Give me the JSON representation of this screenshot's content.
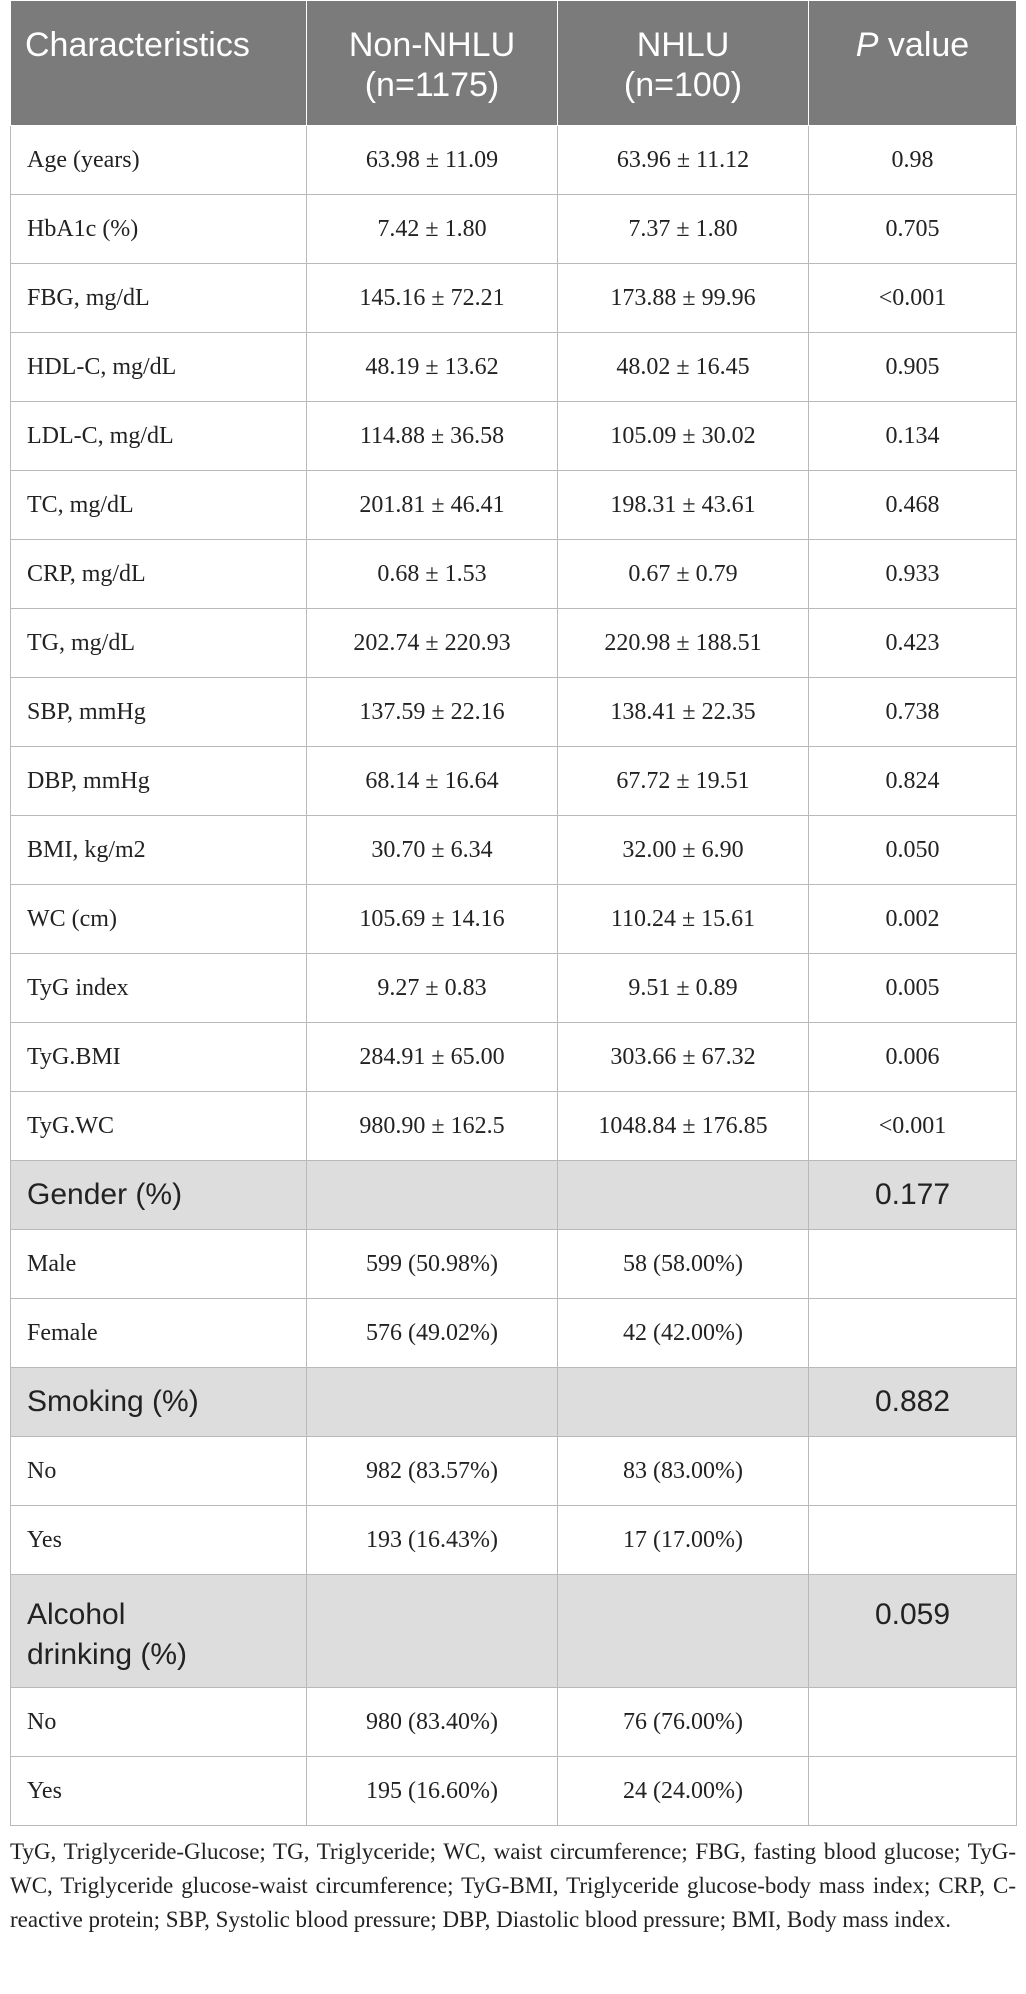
{
  "header": {
    "col1": "Characteristics",
    "col2_line1": "Non-NHLU",
    "col2_line2": "(n=1175)",
    "col3_line1": "NHLU",
    "col3_line2": "(n=100)",
    "col4_italic": "P",
    "col4_rest": " value"
  },
  "continuous_rows": [
    {
      "label": "Age (years)",
      "non_nhlu": "63.98 ± 11.09",
      "nhlu": "63.96 ± 11.12",
      "p": "0.98"
    },
    {
      "label": "HbA1c (%)",
      "non_nhlu": "7.42 ± 1.80",
      "nhlu": "7.37 ± 1.80",
      "p": "0.705"
    },
    {
      "label": "FBG, mg/dL",
      "non_nhlu": "145.16 ± 72.21",
      "nhlu": "173.88 ± 99.96",
      "p": "<0.001"
    },
    {
      "label": "HDL-C, mg/dL",
      "non_nhlu": "48.19 ± 13.62",
      "nhlu": "48.02 ± 16.45",
      "p": "0.905"
    },
    {
      "label": "LDL-C, mg/dL",
      "non_nhlu": "114.88 ± 36.58",
      "nhlu": "105.09 ± 30.02",
      "p": "0.134"
    },
    {
      "label": "TC, mg/dL",
      "non_nhlu": "201.81 ± 46.41",
      "nhlu": "198.31 ± 43.61",
      "p": "0.468"
    },
    {
      "label": "CRP, mg/dL",
      "non_nhlu": "0.68 ± 1.53",
      "nhlu": "0.67 ± 0.79",
      "p": "0.933"
    },
    {
      "label": "TG, mg/dL",
      "non_nhlu": "202.74 ± 220.93",
      "nhlu": "220.98 ± 188.51",
      "p": "0.423"
    },
    {
      "label": "SBP, mmHg",
      "non_nhlu": "137.59 ± 22.16",
      "nhlu": "138.41 ± 22.35",
      "p": "0.738"
    },
    {
      "label": "DBP, mmHg",
      "non_nhlu": "68.14 ± 16.64",
      "nhlu": "67.72 ± 19.51",
      "p": "0.824"
    },
    {
      "label": "BMI, kg/m2",
      "non_nhlu": "30.70 ± 6.34",
      "nhlu": "32.00 ± 6.90",
      "p": "0.050"
    },
    {
      "label": "WC (cm)",
      "non_nhlu": "105.69 ± 14.16",
      "nhlu": "110.24 ± 15.61",
      "p": "0.002"
    },
    {
      "label": "TyG index",
      "non_nhlu": "9.27 ± 0.83",
      "nhlu": "9.51 ± 0.89",
      "p": "0.005"
    },
    {
      "label": "TyG.BMI",
      "non_nhlu": "284.91 ± 65.00",
      "nhlu": "303.66 ± 67.32",
      "p": "0.006"
    },
    {
      "label": "TyG.WC",
      "non_nhlu": "980.90 ± 162.5",
      "nhlu": "1048.84 ± 176.85",
      "p": "<0.001"
    }
  ],
  "sections": [
    {
      "title": "Gender (%)",
      "p": "0.177",
      "rows": [
        {
          "label": "Male",
          "non_nhlu": "599 (50.98%)",
          "nhlu": "58 (58.00%)"
        },
        {
          "label": "Female",
          "non_nhlu": "576 (49.02%)",
          "nhlu": "42 (42.00%)"
        }
      ]
    },
    {
      "title": "Smoking (%)",
      "p": "0.882",
      "rows": [
        {
          "label": "No",
          "non_nhlu": "982 (83.57%)",
          "nhlu": "83 (83.00%)"
        },
        {
          "label": "Yes",
          "non_nhlu": "193 (16.43%)",
          "nhlu": "17 (17.00%)"
        }
      ]
    },
    {
      "title_line1": "Alcohol",
      "title_line2": "drinking (%)",
      "p": "0.059",
      "rows": [
        {
          "label": "No",
          "non_nhlu": "980 (83.40%)",
          "nhlu": "76 (76.00%)"
        },
        {
          "label": "Yes",
          "non_nhlu": "195 (16.60%)",
          "nhlu": "24 (24.00%)"
        }
      ]
    }
  ],
  "footnote": "TyG, Triglyceride-Glucose; TG, Triglyceride; WC, waist circumference; FBG, fasting blood glucose; TyG-WC, Triglyceride glucose-waist circumference; TyG-BMI, Triglyceride glucose-body mass index; CRP, C-reactive protein; SBP, Systolic blood pressure; DBP, Diastolic blood pressure; BMI, Body mass index."
}
